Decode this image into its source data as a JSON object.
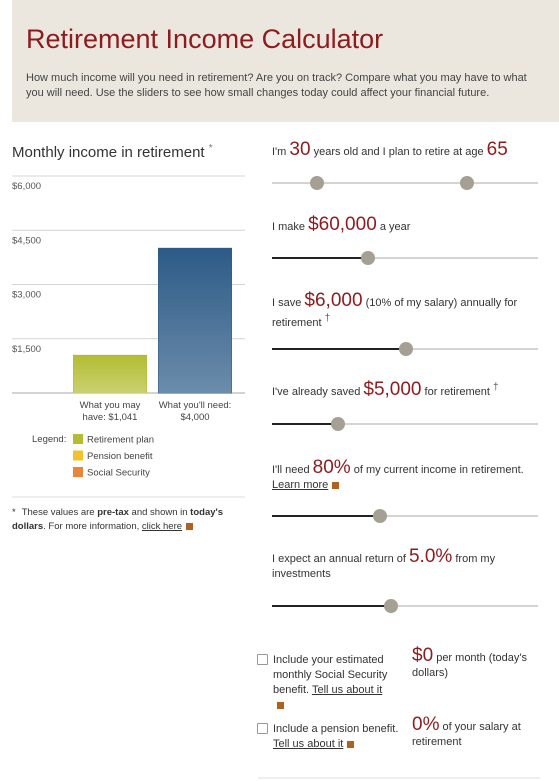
{
  "header": {
    "title": "Retirement Income Calculator",
    "description": "How much income will you need in retirement? Are you on track? Compare what you may have to what you will need. Use the sliders to see how small changes today could affect your financial future."
  },
  "chart_data": {
    "type": "bar",
    "title": "Monthly income in retirement",
    "title_mark": "*",
    "categories": [
      "What you may have: $1,041",
      "What you'll need: $4,000"
    ],
    "values": [
      1041,
      4000
    ],
    "colors": [
      "#b3bd33",
      "#2d5b86"
    ],
    "ylim": [
      0,
      6000
    ],
    "yticks": [
      {
        "value": 1500,
        "label": "$1,500"
      },
      {
        "value": 3000,
        "label": "$3,000"
      },
      {
        "value": 4500,
        "label": "$4,500"
      },
      {
        "value": 6000,
        "label": "$6,000"
      }
    ],
    "grid": true,
    "legend": {
      "label": "Legend:",
      "items": [
        {
          "name": "Retirement plan",
          "color": "#b3bd33"
        },
        {
          "name": "Pension benefit",
          "color": "#f2c12e"
        },
        {
          "name": "Social Security",
          "color": "#e8843c"
        }
      ]
    }
  },
  "footnote": {
    "mark": "*",
    "parts": [
      {
        "t": "These values are "
      },
      {
        "b": "pre-tax"
      },
      {
        "t": " and shown in "
      },
      {
        "b": "today's dollars"
      },
      {
        "t": ". For more information, "
      },
      {
        "link": "click here"
      }
    ]
  },
  "inputs": [
    {
      "parts": [
        {
          "t": "I'm "
        },
        {
          "big": "30"
        },
        {
          "t": " years old and I plan to retire at age "
        },
        {
          "big": "65"
        }
      ]
    },
    {
      "parts": [
        {
          "t": "I make "
        },
        {
          "big": "$60,000"
        },
        {
          "t": " a year"
        }
      ]
    },
    {
      "parts": [
        {
          "t": "I save "
        },
        {
          "big": "$6,000"
        },
        {
          "t": " (10% of my salary) annually for retirement "
        },
        {
          "sup": "†"
        }
      ]
    },
    {
      "parts": [
        {
          "t": "I've already saved "
        },
        {
          "big": "$5,000"
        },
        {
          "t": " for retirement "
        },
        {
          "sup": "†"
        }
      ]
    },
    {
      "parts": [
        {
          "t": "I'll need "
        },
        {
          "big": "80%"
        },
        {
          "t": " of my current income in retirement. "
        },
        {
          "link": "Learn more"
        }
      ]
    },
    {
      "parts": [
        {
          "t": "I expect an annual return of "
        },
        {
          "big": "5.0%"
        },
        {
          "t": " from my investments"
        }
      ]
    }
  ],
  "options": [
    {
      "left": [
        {
          "t": "Include your estimated monthly Social Security benefit. "
        },
        {
          "link": "Tell us about it"
        }
      ],
      "right": [
        {
          "big": "$0"
        },
        {
          "t": " per month (today's dollars)"
        }
      ]
    },
    {
      "left": [
        {
          "t": "Include a pension benefit. "
        },
        {
          "link": "Tell us about it"
        }
      ],
      "right": [
        {
          "big": "0%"
        },
        {
          "t": " of your salary at retirement"
        }
      ]
    }
  ]
}
